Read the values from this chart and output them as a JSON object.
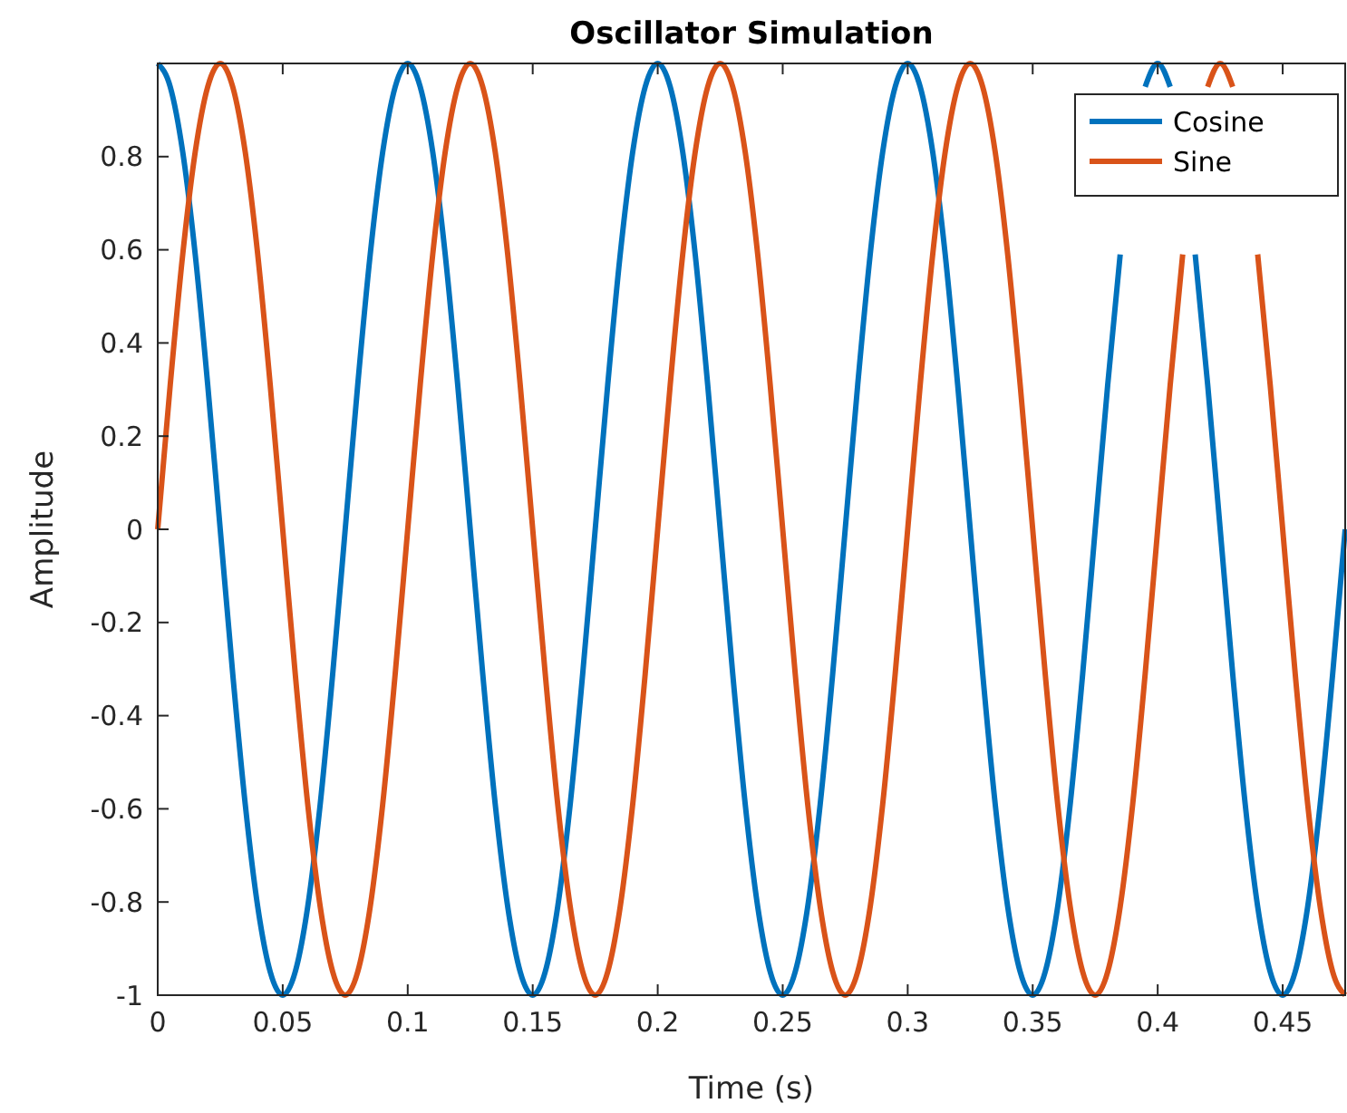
{
  "chart_data": {
    "type": "line",
    "title": "Oscillator Simulation",
    "xlabel": "Time (s)",
    "ylabel": "Amplitude",
    "x": [
      0,
      0.005,
      0.01,
      0.015,
      0.02,
      0.025,
      0.03,
      0.035,
      0.04,
      0.045,
      0.05,
      0.055,
      0.06,
      0.065,
      0.07,
      0.075,
      0.08,
      0.085,
      0.09,
      0.095,
      0.1,
      0.105,
      0.11,
      0.115,
      0.12,
      0.125,
      0.13,
      0.135,
      0.14,
      0.145,
      0.15,
      0.155,
      0.16,
      0.165,
      0.17,
      0.175,
      0.18,
      0.185,
      0.19,
      0.195,
      0.2,
      0.205,
      0.21,
      0.215,
      0.22,
      0.225,
      0.23,
      0.235,
      0.24,
      0.245,
      0.25,
      0.255,
      0.26,
      0.265,
      0.27,
      0.275,
      0.28,
      0.285,
      0.29,
      0.295,
      0.3,
      0.305,
      0.31,
      0.315,
      0.32,
      0.325,
      0.33,
      0.335,
      0.34,
      0.345,
      0.35,
      0.355,
      0.36,
      0.365,
      0.37,
      0.375,
      0.38,
      0.385,
      0.39,
      0.395,
      0.4,
      0.405,
      0.41,
      0.415,
      0.42,
      0.425,
      0.43,
      0.435,
      0.44,
      0.445,
      0.45,
      0.455,
      0.46,
      0.465,
      0.47,
      0.475
    ],
    "series": [
      {
        "name": "Cosine",
        "color": "#0072bd",
        "values": [
          1,
          0.95,
          0.81,
          0.59,
          0.31,
          0,
          -0.31,
          -0.59,
          -0.81,
          -0.95,
          -1,
          -0.95,
          -0.81,
          -0.59,
          -0.31,
          0,
          0.31,
          0.59,
          0.81,
          0.95,
          1,
          0.95,
          0.81,
          0.59,
          0.31,
          0,
          -0.31,
          -0.59,
          -0.81,
          -0.95,
          -1,
          -0.95,
          -0.81,
          -0.59,
          -0.31,
          0,
          0.31,
          0.59,
          0.81,
          0.95,
          1,
          0.95,
          0.81,
          0.59,
          0.31,
          0,
          -0.31,
          -0.59,
          -0.81,
          -0.95,
          -1,
          -0.95,
          -0.81,
          -0.59,
          -0.31,
          0,
          0.31,
          0.59,
          0.81,
          0.95,
          1,
          0.95,
          0.81,
          0.59,
          0.31,
          0,
          -0.31,
          -0.59,
          -0.81,
          -0.95,
          -1,
          -0.95,
          -0.81,
          -0.59,
          -0.31,
          0,
          0.31,
          0.59,
          null,
          0.95,
          1,
          0.95,
          null,
          0.59,
          0.31,
          0,
          -0.31,
          -0.59,
          -0.81,
          -0.95,
          -1,
          -0.95,
          -0.81,
          -0.59,
          -0.31,
          0
        ]
      },
      {
        "name": "Sine",
        "color": "#d95319",
        "values": [
          0,
          0.31,
          0.59,
          0.81,
          0.95,
          1,
          0.95,
          0.81,
          0.59,
          0.31,
          0,
          -0.31,
          -0.59,
          -0.81,
          -0.95,
          -1,
          -0.95,
          -0.81,
          -0.59,
          -0.31,
          0,
          0.31,
          0.59,
          0.81,
          0.95,
          1,
          0.95,
          0.81,
          0.59,
          0.31,
          0,
          -0.31,
          -0.59,
          -0.81,
          -0.95,
          -1,
          -0.95,
          -0.81,
          -0.59,
          -0.31,
          0,
          0.31,
          0.59,
          0.81,
          0.95,
          1,
          0.95,
          0.81,
          0.59,
          0.31,
          0,
          -0.31,
          -0.59,
          -0.81,
          -0.95,
          -1,
          -0.95,
          -0.81,
          -0.59,
          -0.31,
          0,
          0.31,
          0.59,
          0.81,
          0.95,
          1,
          0.95,
          0.81,
          0.59,
          0.31,
          0,
          -0.31,
          -0.59,
          -0.81,
          -0.95,
          -1,
          -0.95,
          -0.81,
          -0.59,
          -0.31,
          0,
          0.31,
          0.59,
          null,
          0.95,
          1,
          0.95,
          null,
          0.59,
          0.31,
          0,
          -0.31,
          -0.59,
          -0.81,
          -0.95,
          -1
        ]
      }
    ],
    "xlim": [
      0,
      0.475
    ],
    "ylim": [
      -1,
      1
    ],
    "xticks": [
      0,
      0.05,
      0.1,
      0.15,
      0.2,
      0.25,
      0.3,
      0.35,
      0.4,
      0.45
    ],
    "yticks": [
      -1,
      -0.8,
      -0.6,
      -0.4,
      -0.2,
      0,
      0.2,
      0.4,
      0.6,
      0.8
    ],
    "legend": "top right",
    "line_style": "solid",
    "marker": "none"
  }
}
